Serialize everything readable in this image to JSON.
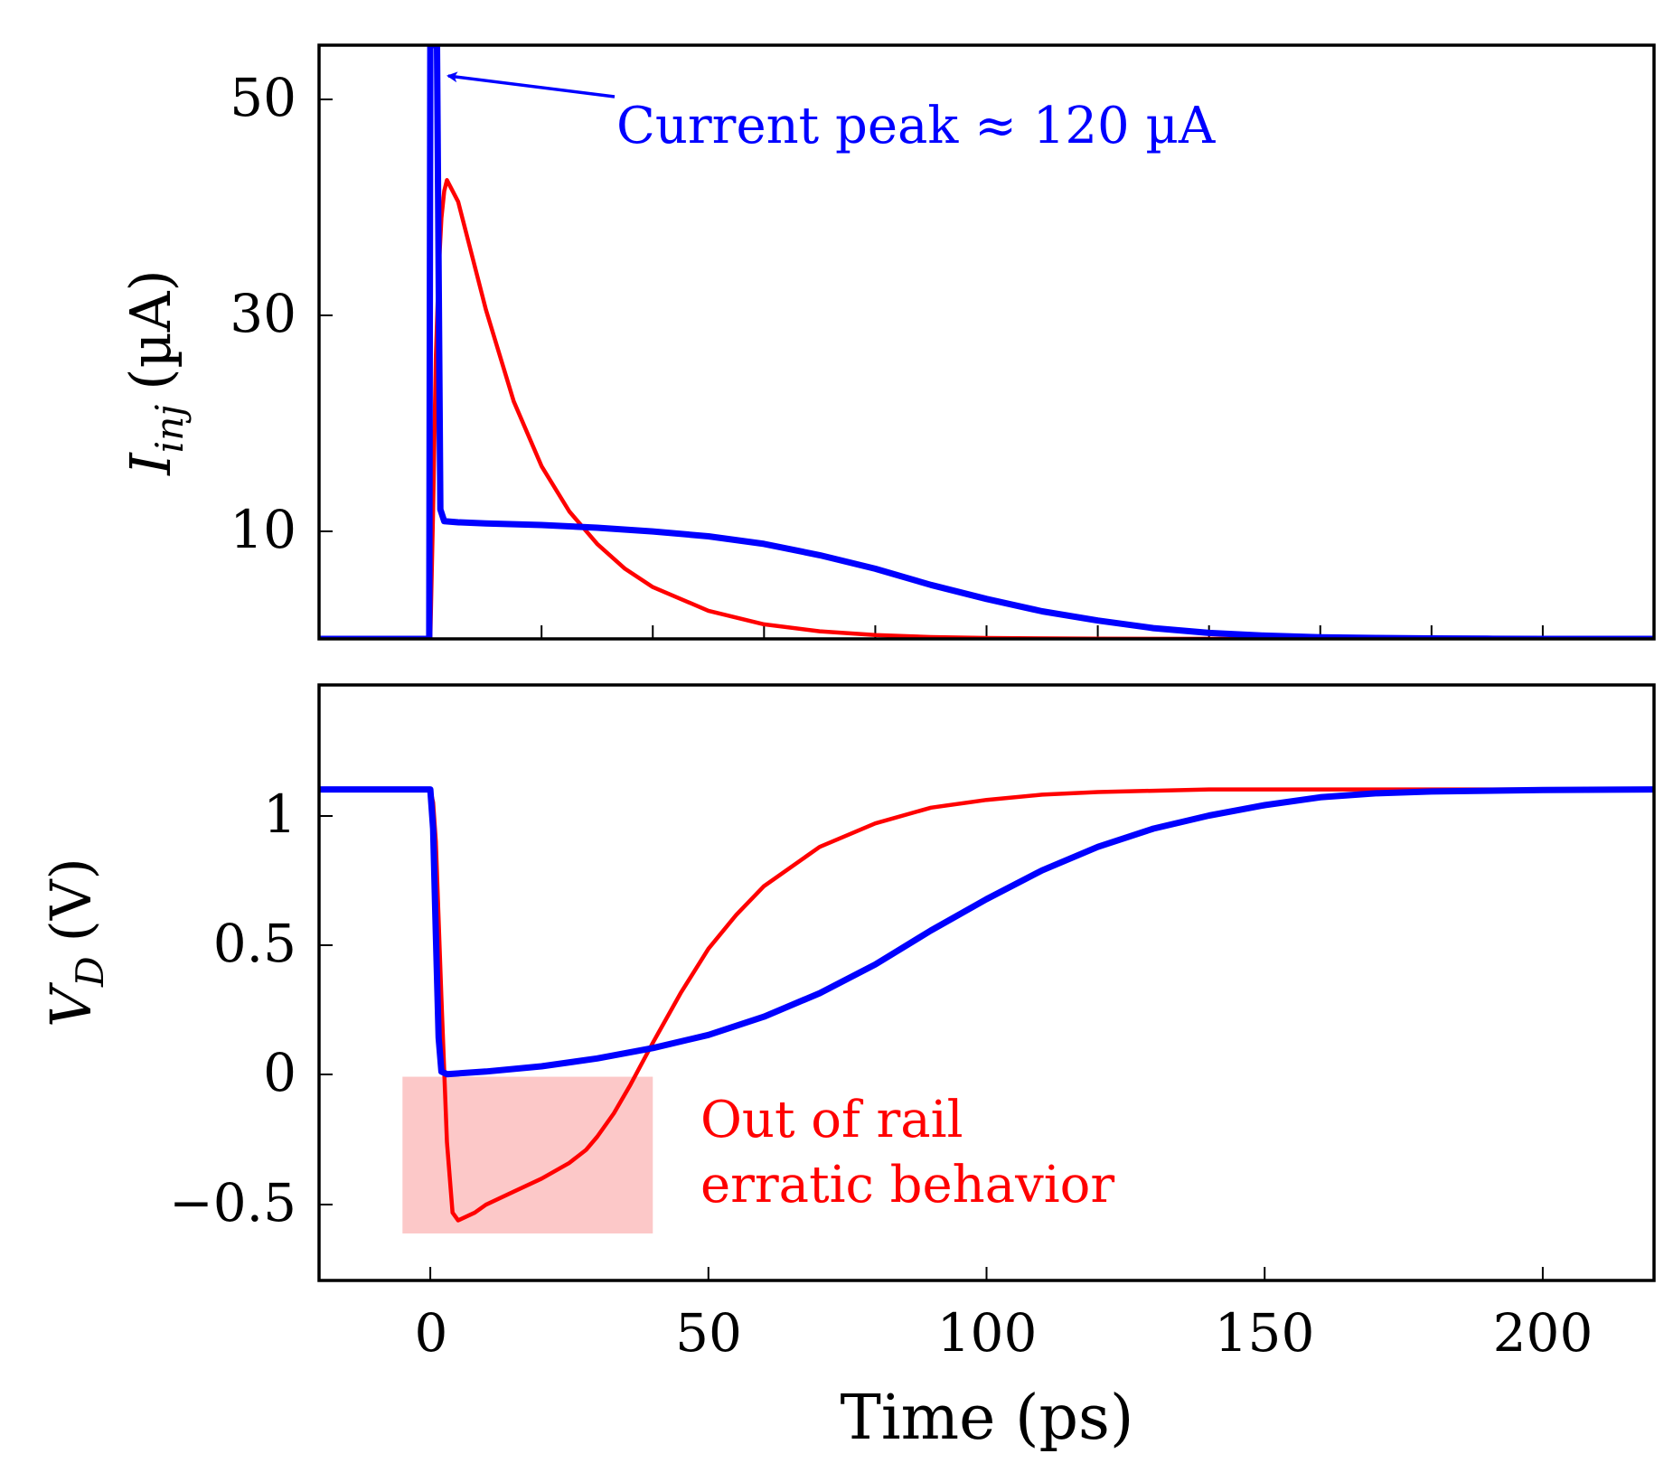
{
  "chart_data": [
    {
      "type": "line",
      "panel": "top",
      "ylabel_main": "I",
      "ylabel_sub": "inj",
      "ylabel_unit": "(µA)",
      "xlim": [
        -20,
        220
      ],
      "ylim": [
        0,
        55
      ],
      "yticks": [
        10,
        30,
        50
      ],
      "ytick_labels": [
        "10",
        "30",
        "50"
      ],
      "xticks": [
        0,
        20,
        40,
        60,
        80,
        100,
        120,
        140,
        160,
        180,
        200
      ],
      "annotation": "Current peak ≈ 120 µA",
      "series": [
        {
          "name": "blue",
          "color": "#0000ff",
          "x": [
            -20,
            -0.2,
            0,
            0.3,
            1.2,
            1.8,
            2.5,
            5,
            10,
            20,
            30,
            40,
            50,
            60,
            70,
            80,
            90,
            100,
            110,
            120,
            130,
            140,
            150,
            160,
            170,
            180,
            190,
            200,
            210,
            220
          ],
          "y": [
            0,
            0,
            55,
            55,
            55,
            12,
            10.9,
            10.8,
            10.7,
            10.55,
            10.3,
            9.95,
            9.5,
            8.8,
            7.75,
            6.5,
            5.0,
            3.7,
            2.55,
            1.7,
            1.0,
            0.55,
            0.3,
            0.15,
            0.08,
            0.04,
            0.02,
            0,
            0,
            0
          ]
        },
        {
          "name": "red",
          "color": "#ff0000",
          "x": [
            -20,
            0,
            0.5,
            1,
            1.5,
            2,
            2.5,
            3,
            5,
            7,
            10,
            15,
            20,
            25,
            30,
            35,
            40,
            50,
            60,
            70,
            80,
            90,
            100,
            120,
            150,
            220
          ],
          "y": [
            0,
            0,
            12,
            26,
            34,
            39,
            41.5,
            42.5,
            40.5,
            36.5,
            30.5,
            22,
            16,
            11.8,
            8.8,
            6.5,
            4.8,
            2.6,
            1.35,
            0.7,
            0.35,
            0.17,
            0.08,
            0.02,
            0,
            0
          ]
        }
      ]
    },
    {
      "type": "line",
      "panel": "bottom",
      "ylabel_main": "V",
      "ylabel_sub": "D",
      "ylabel_unit": "(V)",
      "xlabel": "Time (ps)",
      "xlim": [
        -20,
        220
      ],
      "ylim": [
        -0.78,
        1.5
      ],
      "yticks": [
        -0.5,
        0,
        0.5,
        1
      ],
      "ytick_labels": [
        "−0.5",
        "0",
        "0.5",
        "1"
      ],
      "xticks": [
        0,
        50,
        100,
        150,
        200
      ],
      "xtick_labels": [
        "0",
        "50",
        "100",
        "150",
        "200"
      ],
      "shaded_region": {
        "x": [
          -5,
          40
        ],
        "y": [
          -0.6,
          0
        ],
        "color": "#fcc8c8"
      },
      "annotation_lines": [
        "Out of rail",
        "erratic behavior"
      ],
      "series": [
        {
          "name": "blue",
          "color": "#0000ff",
          "x": [
            -20,
            0,
            0.5,
            1,
            1.5,
            2,
            3,
            10,
            20,
            30,
            40,
            50,
            60,
            70,
            80,
            90,
            100,
            110,
            120,
            130,
            140,
            150,
            160,
            170,
            180,
            200,
            220
          ],
          "y": [
            1.1,
            1.1,
            0.95,
            0.55,
            0.15,
            0.02,
            0.01,
            0.02,
            0.04,
            0.07,
            0.11,
            0.16,
            0.23,
            0.32,
            0.43,
            0.56,
            0.68,
            0.79,
            0.88,
            0.95,
            1.0,
            1.04,
            1.07,
            1.085,
            1.092,
            1.098,
            1.1
          ]
        },
        {
          "name": "red",
          "color": "#ff0000",
          "x": [
            -20,
            0,
            0.5,
            1,
            2,
            3,
            4,
            5,
            8,
            10,
            15,
            20,
            25,
            28,
            30,
            33,
            36,
            40,
            45,
            50,
            55,
            60,
            70,
            80,
            90,
            100,
            110,
            120,
            140,
            160,
            220
          ],
          "y": [
            1.1,
            1.1,
            1.05,
            0.9,
            0.3,
            -0.25,
            -0.52,
            -0.55,
            -0.52,
            -0.49,
            -0.44,
            -0.39,
            -0.33,
            -0.28,
            -0.23,
            -0.14,
            -0.03,
            0.13,
            0.32,
            0.49,
            0.62,
            0.73,
            0.88,
            0.97,
            1.03,
            1.06,
            1.08,
            1.09,
            1.1,
            1.1,
            1.1
          ]
        }
      ]
    }
  ]
}
